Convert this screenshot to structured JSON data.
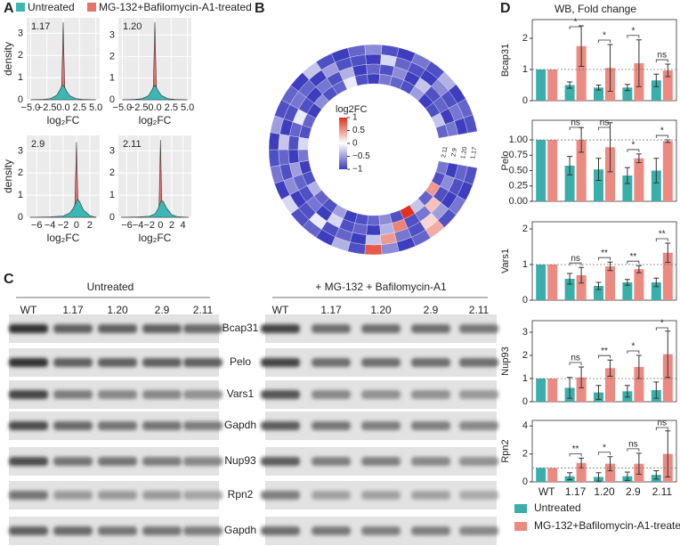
{
  "panels": [
    "A",
    "B",
    "C",
    "D"
  ],
  "chart_data": [
    {
      "type": "density",
      "title": "1.17",
      "xlabel": "log₂FC",
      "ylabel": "density",
      "x": [
        -5,
        -3,
        -2,
        -1,
        -0.5,
        -0.25,
        -0.1,
        0,
        0.1,
        0.25,
        0.5,
        1,
        2,
        3,
        5
      ],
      "series": [
        {
          "name": "Untreated",
          "color": "#3bb8b4",
          "values": [
            0,
            0.02,
            0.05,
            0.2,
            0.45,
            0.6,
            0.65,
            0.65,
            0.62,
            0.55,
            0.4,
            0.18,
            0.05,
            0.02,
            0
          ]
        },
        {
          "name": "MG-132+Bafilomycin-A1-treated",
          "color": "#e8726a",
          "values": [
            0,
            0.01,
            0.02,
            0.05,
            0.15,
            0.5,
            2.2,
            3.5,
            2.1,
            0.45,
            0.12,
            0.04,
            0.02,
            0.01,
            0
          ]
        }
      ],
      "xlim": [
        -5.6,
        5.6
      ],
      "xticks": [
        {
          "value": -5,
          "label": "−5.0"
        },
        {
          "value": -2.5,
          "label": "−2.5"
        },
        {
          "value": 0,
          "label": "0.0"
        },
        {
          "value": 2.5,
          "label": "2.5"
        },
        {
          "value": 5,
          "label": "5.0"
        }
      ],
      "ylim": [
        0,
        3.7
      ],
      "yticks": [
        0,
        1,
        2,
        3
      ],
      "grid": true
    },
    {
      "type": "density",
      "title": "1.20",
      "xlabel": "log₂FC",
      "x": [
        -5,
        -3,
        -2,
        -1,
        -0.5,
        -0.25,
        -0.1,
        0,
        0.1,
        0.25,
        0.5,
        1,
        2,
        3,
        5
      ],
      "series": [
        {
          "color": "#3bb8b4",
          "values": [
            0,
            0.02,
            0.05,
            0.18,
            0.42,
            0.58,
            0.64,
            0.66,
            0.63,
            0.56,
            0.42,
            0.2,
            0.05,
            0.02,
            0
          ]
        },
        {
          "color": "#e8726a",
          "values": [
            0,
            0.01,
            0.02,
            0.05,
            0.14,
            0.48,
            2.3,
            3.6,
            2.2,
            0.45,
            0.12,
            0.04,
            0.02,
            0.01,
            0
          ]
        }
      ],
      "xlim": [
        -5.6,
        5.6
      ],
      "xticks": [
        {
          "value": -5,
          "label": "−5.0"
        },
        {
          "value": -2.5,
          "label": "−2.5"
        },
        {
          "value": 0,
          "label": "0.0"
        },
        {
          "value": 2.5,
          "label": "2.5"
        },
        {
          "value": 5,
          "label": "5.0"
        }
      ],
      "ylim": [
        0,
        3.8
      ],
      "yticks": [
        0,
        1,
        2,
        3
      ],
      "grid": true
    },
    {
      "type": "density",
      "title": "2.9",
      "xlabel": "log₂FC",
      "ylabel": "density",
      "x": [
        -7,
        -4,
        -2,
        -1,
        -0.5,
        -0.25,
        -0.1,
        0,
        0.1,
        0.25,
        0.5,
        1,
        2,
        3
      ],
      "series": [
        {
          "color": "#3bb8b4",
          "values": [
            0,
            0.02,
            0.06,
            0.2,
            0.4,
            0.55,
            0.65,
            0.72,
            0.78,
            0.8,
            0.7,
            0.35,
            0.08,
            0
          ]
        },
        {
          "color": "#e8726a",
          "values": [
            0,
            0.01,
            0.02,
            0.05,
            0.15,
            0.5,
            2.2,
            3.4,
            2.1,
            0.45,
            0.15,
            0.05,
            0.01,
            0
          ]
        }
      ],
      "xlim": [
        -7.5,
        3.5
      ],
      "xticks": [
        {
          "value": -6,
          "label": "−6"
        },
        {
          "value": -4,
          "label": "−4"
        },
        {
          "value": -2,
          "label": "−2"
        },
        0,
        2
      ],
      "ylim": [
        0,
        3.7
      ],
      "yticks": [
        0,
        1,
        2,
        3
      ],
      "grid": true
    },
    {
      "type": "density",
      "title": "2.11",
      "xlabel": "log₂FC",
      "x": [
        -7,
        -4,
        -2,
        -1,
        -0.5,
        -0.25,
        -0.1,
        0,
        0.1,
        0.25,
        0.5,
        1,
        2,
        3,
        5
      ],
      "series": [
        {
          "color": "#3bb8b4",
          "values": [
            0,
            0.02,
            0.05,
            0.15,
            0.35,
            0.5,
            0.6,
            0.68,
            0.72,
            0.75,
            0.72,
            0.45,
            0.12,
            0.03,
            0
          ]
        },
        {
          "color": "#e8726a",
          "values": [
            0,
            0.01,
            0.02,
            0.05,
            0.15,
            0.55,
            2.3,
            3.5,
            2.2,
            0.5,
            0.15,
            0.05,
            0.02,
            0.01,
            0
          ]
        }
      ],
      "xlim": [
        -7.5,
        5.5
      ],
      "xticks": [
        {
          "value": -6,
          "label": "−6"
        },
        {
          "value": -4,
          "label": "−4"
        },
        {
          "value": -2,
          "label": "−2"
        },
        0,
        2,
        4
      ],
      "ylim": [
        0,
        3.7
      ],
      "yticks": [
        0,
        1,
        2,
        3
      ],
      "grid": true
    },
    {
      "type": "radial-heatmap",
      "rings": [
        "1.17",
        "1.20",
        "2.9",
        "2.11"
      ],
      "values": [
        [
          -0.9,
          -1,
          -0.7,
          -0.9,
          0.4,
          -0.8,
          -1,
          -0.6,
          0.8,
          -0.9,
          -0.4,
          -1,
          -0.8,
          -0.9,
          -0.2,
          -1,
          -0.7,
          -0.9,
          -1,
          -0.5,
          -0.9,
          -0.8,
          -1,
          -0.3,
          -0.9,
          -1,
          -0.8,
          -0.6,
          -0.9,
          -1,
          -0.7,
          -0.9,
          -0.4,
          -1,
          -0.8,
          -0.9
        ],
        [
          -0.8,
          -0.9,
          -1,
          -0.5,
          0.2,
          -0.9,
          -0.7,
          0.5,
          -0.3,
          -1,
          -0.8,
          -0.9,
          -0.1,
          -0.9,
          -1,
          -0.6,
          -0.9,
          -0.8,
          -0.3,
          -1,
          -0.9,
          -0.7,
          -0.8,
          -1,
          -0.5,
          -0.9,
          -0.9,
          -1,
          -0.2,
          -0.8,
          -0.9,
          -1,
          -0.6,
          -0.9,
          -0.7,
          -1
        ],
        [
          -1,
          -0.6,
          -0.9,
          0.3,
          -0.7,
          -0.9,
          0.6,
          -0.4,
          -1,
          -0.8,
          -0.9,
          -0.2,
          -1,
          -0.7,
          -0.9,
          -0.8,
          -0.5,
          -1,
          -0.9,
          -0.8,
          -0.1,
          -0.9,
          -1,
          -0.7,
          -0.9,
          -0.4,
          -1,
          -0.8,
          -0.9,
          -0.6,
          -1,
          -0.3,
          -0.9,
          -0.8,
          -1,
          -0.7
        ],
        [
          -0.7,
          -0.9,
          0.5,
          -0.8,
          -0.3,
          1,
          -0.9,
          -0.6,
          -0.8,
          -0.9,
          -1,
          -0.5,
          -0.9,
          -0.8,
          -0.4,
          -0.9,
          -1,
          -0.7,
          -0.2,
          -0.9,
          -0.8,
          -1,
          -0.6,
          -0.9,
          -0.8,
          -0.1,
          -0.9,
          -1,
          -0.7,
          -0.8,
          -0.9,
          -0.5,
          -1,
          -0.9,
          -0.3,
          -0.8
        ]
      ],
      "zlim": [
        -1,
        1
      ],
      "colors": [
        "#3d3dbe",
        "#ffffff",
        "#e0301e"
      ],
      "colorbar_title": "log2FC",
      "colorbar_ticks": [
        1,
        0.5,
        0,
        {
          "value": -0.5,
          "label": "−0.5"
        },
        {
          "value": -1,
          "label": "−1"
        }
      ]
    },
    {
      "type": "bar",
      "title": "WB, Fold change",
      "ylabel": "Bcap31",
      "refline": 1,
      "series": [
        {
          "name": "Untreated",
          "color": "#3aaea9",
          "values": [
            1,
            0.5,
            0.42,
            0.42,
            0.65
          ],
          "errors": [
            0,
            0.1,
            0.08,
            0.1,
            0.2
          ]
        },
        {
          "name": "MG-132+Bafilomycin-A1-treated",
          "color": "#ec8a82",
          "values": [
            1,
            1.75,
            1.05,
            1.2,
            0.97
          ],
          "errors": [
            0,
            0.65,
            0.75,
            0.75,
            0.2
          ]
        }
      ],
      "significance": [
        "*",
        "*",
        "*",
        "ns"
      ],
      "ylim": [
        0,
        2.6
      ],
      "yticks": [
        0,
        1,
        2
      ]
    },
    {
      "type": "bar",
      "ylabel": "Pelo",
      "refline": 1,
      "series": [
        {
          "color": "#3aaea9",
          "values": [
            1,
            0.58,
            0.52,
            0.42,
            0.5
          ],
          "errors": [
            0,
            0.15,
            0.18,
            0.13,
            0.2
          ]
        },
        {
          "color": "#ec8a82",
          "values": [
            1,
            1,
            0.88,
            0.7,
            0.98
          ],
          "errors": [
            0,
            0.2,
            0.4,
            0.07,
            0.02
          ]
        }
      ],
      "significance": [
        "ns",
        "ns",
        "*",
        "*"
      ],
      "ylim": [
        0,
        1.32
      ],
      "yticks": [
        {
          "value": 0,
          "label": "0.00"
        },
        {
          "value": 0.25,
          "label": "0.25"
        },
        {
          "value": 0.5,
          "label": "0.50"
        },
        {
          "value": 0.75,
          "label": "0.75"
        },
        {
          "value": 1,
          "label": "1.00"
        }
      ]
    },
    {
      "type": "bar",
      "ylabel": "Vars1",
      "refline": 1,
      "series": [
        {
          "color": "#3aaea9",
          "values": [
            1,
            0.6,
            0.4,
            0.5,
            0.5
          ],
          "errors": [
            0,
            0.15,
            0.1,
            0.08,
            0.12
          ]
        },
        {
          "color": "#ec8a82",
          "values": [
            1,
            0.7,
            0.95,
            0.87,
            1.33
          ],
          "errors": [
            0,
            0.22,
            0.12,
            0.1,
            0.27
          ]
        }
      ],
      "significance": [
        "ns",
        "**",
        "**",
        "**"
      ],
      "ylim": [
        0,
        2.2
      ],
      "yticks": [
        0,
        1,
        2
      ]
    },
    {
      "type": "bar",
      "ylabel": "Nup93",
      "refline": 1,
      "series": [
        {
          "color": "#3aaea9",
          "values": [
            1,
            0.6,
            0.4,
            0.45,
            0.5
          ],
          "errors": [
            0,
            0.45,
            0.3,
            0.25,
            0.35
          ]
        },
        {
          "color": "#ec8a82",
          "values": [
            1,
            1.05,
            1.45,
            1.5,
            2.05
          ],
          "errors": [
            0,
            0.45,
            0.35,
            0.5,
            1.0
          ]
        }
      ],
      "significance": [
        "ns",
        "**",
        "*",
        "*"
      ],
      "ylim": [
        0,
        3.5
      ],
      "yticks": [
        0,
        1,
        2,
        3
      ]
    },
    {
      "type": "bar",
      "ylabel": "Rpn2",
      "refline": 1,
      "categories": [
        "WT",
        "1.17",
        "1.20",
        "2.9",
        "2.11"
      ],
      "series": [
        {
          "color": "#3aaea9",
          "values": [
            1,
            0.4,
            0.35,
            0.4,
            0.5
          ],
          "errors": [
            0,
            0.25,
            0.3,
            0.3,
            0.3
          ]
        },
        {
          "color": "#ec8a82",
          "values": [
            1,
            1.35,
            1.3,
            1.3,
            2.0
          ],
          "errors": [
            0,
            0.35,
            0.5,
            0.75,
            1.65
          ]
        }
      ],
      "significance": [
        "**",
        "*",
        "ns",
        "ns"
      ],
      "ylim": [
        0,
        4.4
      ],
      "yticks": [
        0,
        2,
        4
      ]
    }
  ],
  "blot": {
    "groups": [
      {
        "title": "Untreated",
        "lanes": [
          "WT",
          "1.17",
          "1.20",
          "2.9",
          "2.11"
        ]
      },
      {
        "title": "+ MG-132 + Bafilomycin-A1",
        "lanes": [
          "WT",
          "1.17",
          "1.20",
          "2.9",
          "2.11"
        ]
      }
    ],
    "proteins": [
      "Bcap31",
      "Pelo",
      "Vars1",
      "Gapdh",
      "Nup93",
      "Rpn2",
      "Gapdh"
    ]
  }
}
